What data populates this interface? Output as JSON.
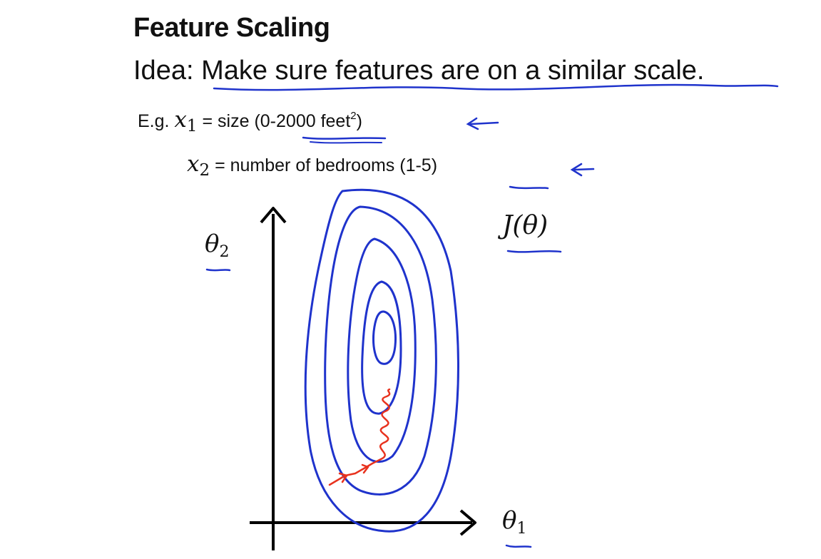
{
  "slide": {
    "title": "Feature Scaling",
    "idea_prefix": "Idea: ",
    "idea_text": "Make sure features are on a similar scale.",
    "example_prefix": "E.g. ",
    "x1_var": "x",
    "x1_sub": "1",
    "x1_desc_before": " = size (",
    "x1_range": "0-2000",
    "x1_unit": " feet",
    "x1_exp": "2",
    "x1_close": ")",
    "x2_var": "x",
    "x2_sub": "2",
    "x2_desc_before": " = number of bedrooms (",
    "x2_range": "1-5",
    "x2_close": ")"
  },
  "diagram": {
    "y_axis_var": "θ",
    "y_axis_sub": "2",
    "x_axis_var": "θ",
    "x_axis_sub": "1",
    "cost_label": "J(θ)",
    "contour_color": "#1f33cc",
    "path_color": "#e8321e",
    "axis_color": "#000000",
    "contour_count": 5
  }
}
